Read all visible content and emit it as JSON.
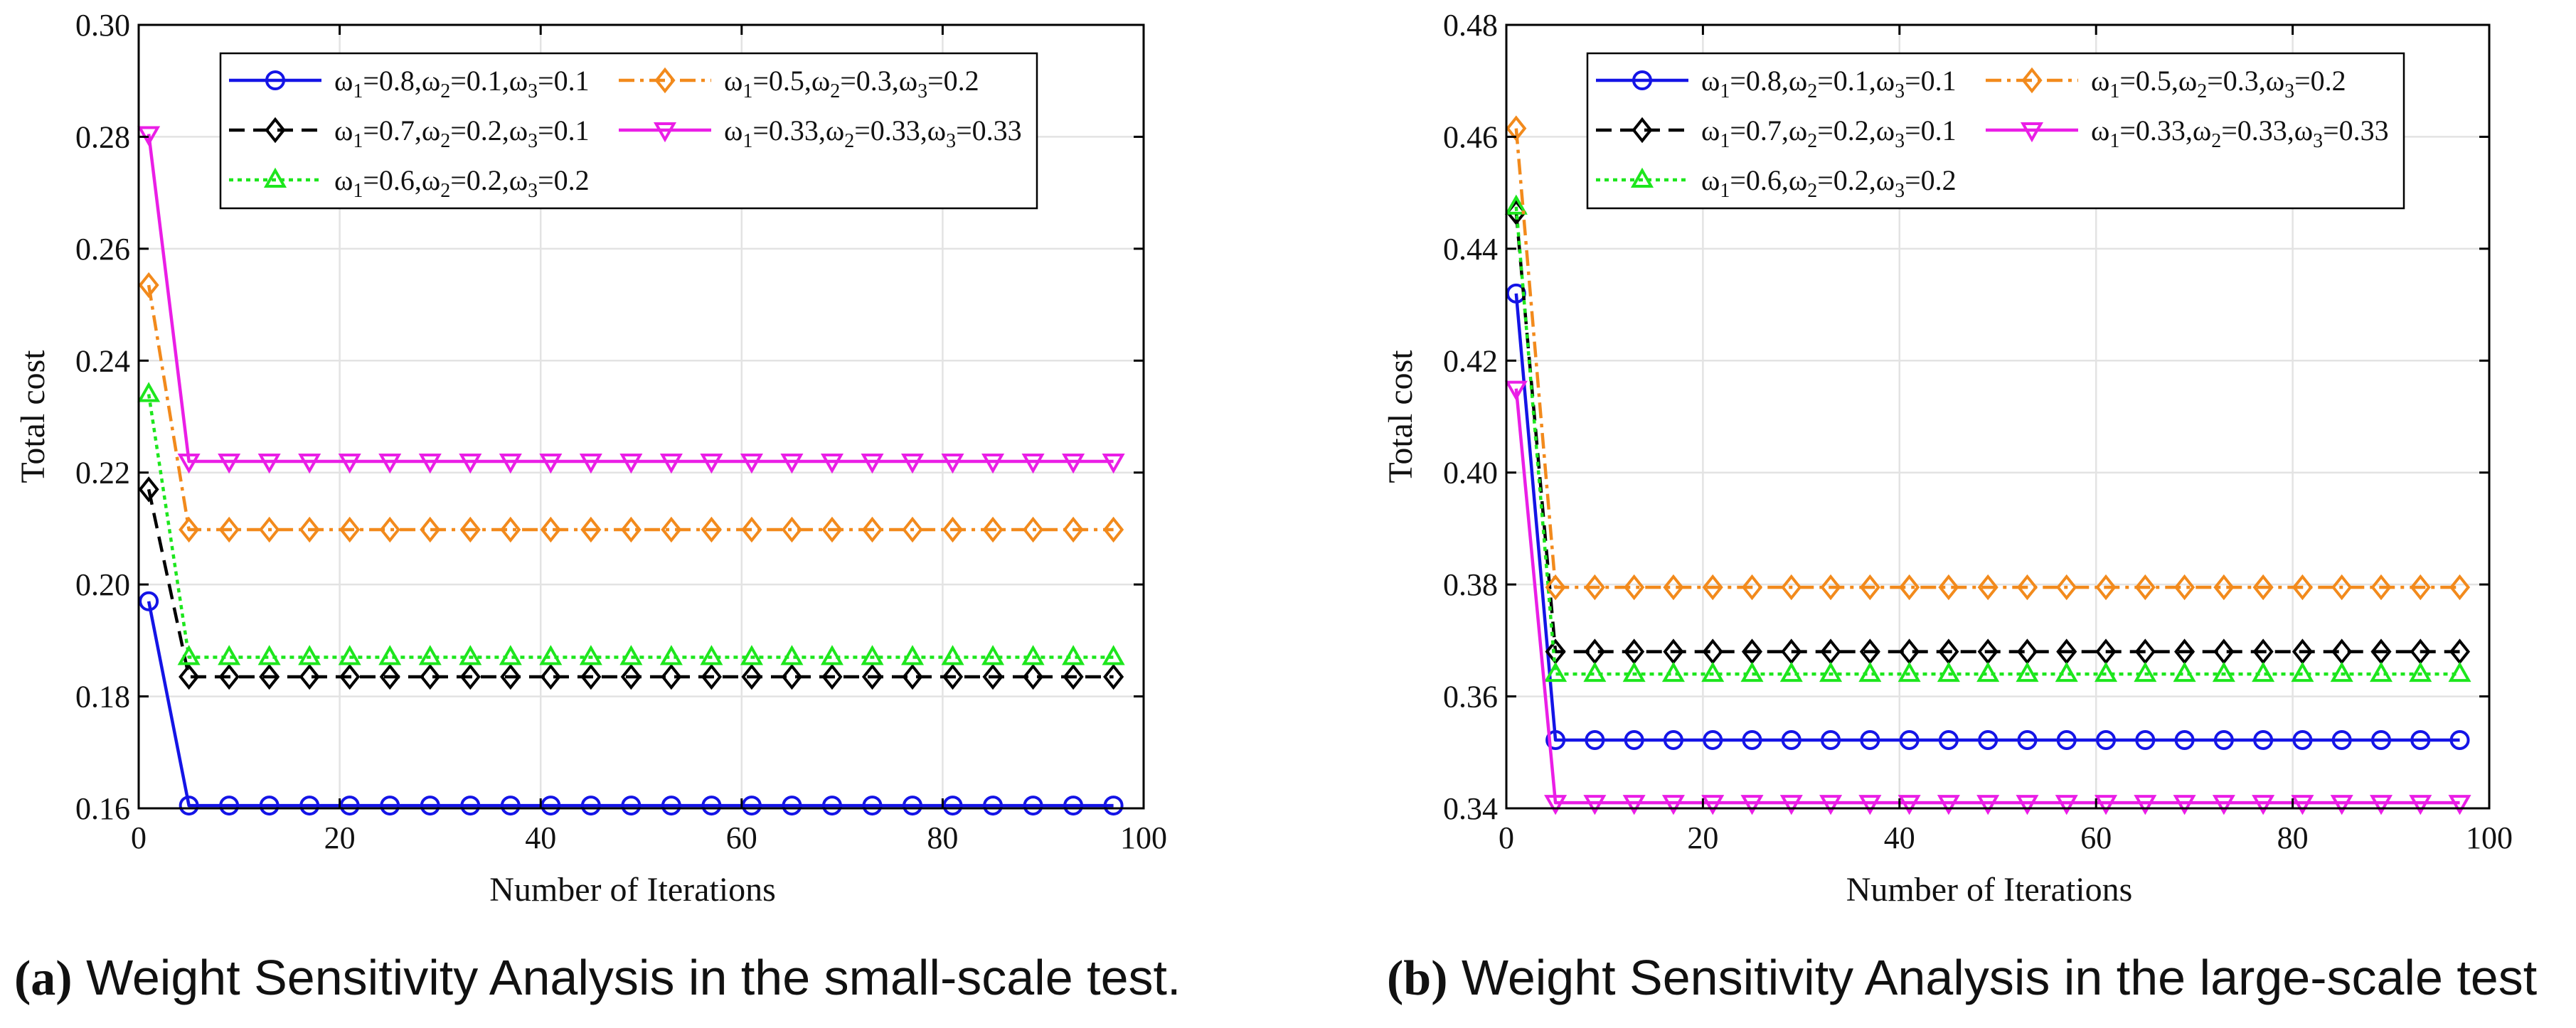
{
  "chart_data": [
    {
      "type": "line",
      "title": "",
      "xlabel": "Number of Iterations",
      "ylabel": "Total cost",
      "xlim": [
        0,
        100
      ],
      "ylim": [
        0.16,
        0.3
      ],
      "xticks": [
        0,
        20,
        40,
        60,
        80,
        100
      ],
      "xtick_labels": [
        "0",
        "20",
        "40",
        "60",
        "80",
        "100"
      ],
      "yticks": [
        0.16,
        0.18,
        0.2,
        0.22,
        0.24,
        0.26,
        0.28,
        0.3
      ],
      "ytick_labels": [
        "0.16",
        "0.18",
        "0.20",
        "0.22",
        "0.24",
        "0.26",
        "0.28",
        "0.30"
      ],
      "grid": true,
      "legend_position": "top",
      "x": [
        1,
        5,
        9,
        13,
        17,
        21,
        25,
        29,
        33,
        37,
        41,
        45,
        49,
        53,
        57,
        61,
        65,
        69,
        73,
        77,
        81,
        85,
        89,
        93,
        97
      ],
      "series": [
        {
          "name": "ω1=0.8,ω2=0.1,ω3=0.1",
          "initial": 0.197,
          "final": 0.1605,
          "color": "#1414e6",
          "dash": "",
          "marker": "circle"
        },
        {
          "name": "ω1=0.7,ω2=0.2,ω3=0.1",
          "initial": 0.217,
          "final": 0.1835,
          "color": "#000000",
          "dash": "22,12",
          "marker": "diamond"
        },
        {
          "name": "ω1=0.6,ω2=0.2,ω3=0.2",
          "initial": 0.234,
          "final": 0.187,
          "color": "#1de61d",
          "dash": "6,6",
          "marker": "triangle-up"
        },
        {
          "name": "ω1=0.5,ω2=0.3,ω3=0.2",
          "initial": 0.2535,
          "final": 0.2098,
          "color": "#f28a1c",
          "dash": "22,8,5,8",
          "marker": "diamond"
        },
        {
          "name": "ω1=0.33,ω2=0.33,ω3=0.33",
          "initial": 0.2805,
          "final": 0.222,
          "color": "#ea1ee6",
          "dash": "",
          "marker": "triangle-down"
        }
      ],
      "caption_label": "(a)",
      "caption_text": " Weight Sensitivity Analysis in the small-scale test."
    },
    {
      "type": "line",
      "title": "",
      "xlabel": "Number of Iterations",
      "ylabel": "Total cost",
      "xlim": [
        0,
        100
      ],
      "ylim": [
        0.34,
        0.48
      ],
      "xticks": [
        0,
        20,
        40,
        60,
        80,
        100
      ],
      "xtick_labels": [
        "0",
        "20",
        "40",
        "60",
        "80",
        "100"
      ],
      "yticks": [
        0.34,
        0.36,
        0.38,
        0.4,
        0.42,
        0.44,
        0.46,
        0.48
      ],
      "ytick_labels": [
        "0.34",
        "0.36",
        "0.38",
        "0.40",
        "0.42",
        "0.44",
        "0.46",
        "0.48"
      ],
      "grid": true,
      "legend_position": "top",
      "x": [
        1,
        5,
        9,
        13,
        17,
        21,
        25,
        29,
        33,
        37,
        41,
        45,
        49,
        53,
        57,
        61,
        65,
        69,
        73,
        77,
        81,
        85,
        89,
        93,
        97
      ],
      "series": [
        {
          "name": "ω1=0.8,ω2=0.1,ω3=0.1",
          "initial": 0.432,
          "final": 0.3522,
          "color": "#1414e6",
          "dash": "",
          "marker": "circle"
        },
        {
          "name": "ω1=0.7,ω2=0.2,ω3=0.1",
          "initial": 0.4465,
          "final": 0.368,
          "color": "#000000",
          "dash": "22,12",
          "marker": "diamond"
        },
        {
          "name": "ω1=0.6,ω2=0.2,ω3=0.2",
          "initial": 0.4475,
          "final": 0.364,
          "color": "#1de61d",
          "dash": "6,6",
          "marker": "triangle-up"
        },
        {
          "name": "ω1=0.5,ω2=0.3,ω3=0.2",
          "initial": 0.4615,
          "final": 0.3795,
          "color": "#f28a1c",
          "dash": "22,8,5,8",
          "marker": "diamond"
        },
        {
          "name": "ω1=0.33,ω2=0.33,ω3=0.33",
          "initial": 0.415,
          "final": 0.341,
          "color": "#ea1ee6",
          "dash": "",
          "marker": "triangle-down"
        }
      ],
      "caption_label": "(b)",
      "caption_text": " Weight Sensitivity Analysis in the large-scale test"
    }
  ]
}
